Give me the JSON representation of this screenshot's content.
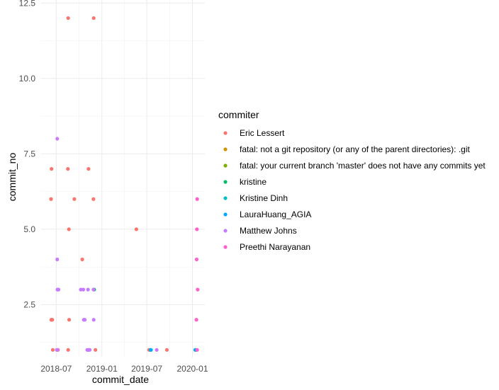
{
  "chart_data": {
    "type": "scatter",
    "xlabel": "commit_date",
    "ylabel": "commit_no",
    "grid": true,
    "legend_position": "right",
    "x_type": "date",
    "xlim": [
      "2018-05-01",
      "2020-02-20"
    ],
    "ylim": [
      0.75,
      12.6
    ],
    "x_ticks": [
      {
        "date": "2018-07-01",
        "label": "2018-07"
      },
      {
        "date": "2019-01-01",
        "label": "2019-01"
      },
      {
        "date": "2019-07-01",
        "label": "2019-07"
      },
      {
        "date": "2020-01-01",
        "label": "2020-01"
      }
    ],
    "y_ticks": [
      {
        "value": 2.5,
        "label": "2.5"
      },
      {
        "value": 5.0,
        "label": "5.0"
      },
      {
        "value": 7.5,
        "label": "7.5"
      },
      {
        "value": 10.0,
        "label": "10.0"
      },
      {
        "value": 12.5,
        "label": "12.5"
      }
    ],
    "legend_title": "commiter",
    "series": [
      {
        "name": "Eric Lessert",
        "color": "#F8766D",
        "points": [
          [
            "2018-06-10",
            6
          ],
          [
            "2018-06-12",
            7
          ],
          [
            "2018-06-11",
            2
          ],
          [
            "2018-06-13",
            2
          ],
          [
            "2018-06-15",
            2
          ],
          [
            "2018-06-17",
            1
          ],
          [
            "2018-07-08",
            1
          ],
          [
            "2018-08-18",
            12
          ],
          [
            "2018-08-17",
            7
          ],
          [
            "2018-08-21",
            5
          ],
          [
            "2018-08-22",
            2
          ],
          [
            "2018-08-18",
            1
          ],
          [
            "2018-09-12",
            6
          ],
          [
            "2018-10-14",
            4
          ],
          [
            "2018-11-08",
            7
          ],
          [
            "2018-11-29",
            12
          ],
          [
            "2018-11-28",
            6
          ],
          [
            "2018-12-06",
            1
          ],
          [
            "2019-05-20",
            5
          ],
          [
            "2019-07-10",
            1
          ],
          [
            "2019-09-20",
            1
          ]
        ]
      },
      {
        "name": "fatal: not a git repository (or any of the parent directories): .git",
        "color": "#CD9600",
        "points": []
      },
      {
        "name": "fatal: your current branch 'master' does not have any commits yet",
        "color": "#7CAE00",
        "points": []
      },
      {
        "name": "kristine",
        "color": "#00BE67",
        "points": [
          [
            "2018-12-01",
            3
          ]
        ]
      },
      {
        "name": "Kristine Dinh",
        "color": "#00BFC4",
        "points": [
          [
            "2019-07-16",
            1
          ],
          [
            "2020-01-12",
            1
          ]
        ]
      },
      {
        "name": "LauraHuang_AGIA",
        "color": "#00A9FF",
        "points": [
          [
            "2019-07-18",
            1
          ],
          [
            "2020-01-14",
            1
          ]
        ]
      },
      {
        "name": "Matthew Johns",
        "color": "#C77CFF",
        "points": [
          [
            "2018-07-05",
            8
          ],
          [
            "2018-07-05",
            4
          ],
          [
            "2018-07-06",
            3
          ],
          [
            "2018-07-08",
            3
          ],
          [
            "2018-07-10",
            3
          ],
          [
            "2018-07-03",
            1
          ],
          [
            "2018-07-06",
            1
          ],
          [
            "2018-10-08",
            3
          ],
          [
            "2018-10-18",
            3
          ],
          [
            "2018-10-20",
            2
          ],
          [
            "2018-10-24",
            2
          ],
          [
            "2018-11-06",
            3
          ],
          [
            "2018-11-03",
            1
          ],
          [
            "2018-11-06",
            1
          ],
          [
            "2018-11-09",
            1
          ],
          [
            "2018-11-13",
            1
          ],
          [
            "2018-11-28",
            3
          ],
          [
            "2018-11-29",
            2
          ],
          [
            "2019-08-10",
            1
          ]
        ]
      },
      {
        "name": "Preethi Narayanan",
        "color": "#FF61CC",
        "points": [
          [
            "2020-01-20",
            6
          ],
          [
            "2020-01-19",
            5
          ],
          [
            "2020-01-18",
            4
          ],
          [
            "2020-01-22",
            3
          ],
          [
            "2020-01-17",
            2
          ],
          [
            "2020-01-20",
            1
          ]
        ]
      }
    ]
  }
}
